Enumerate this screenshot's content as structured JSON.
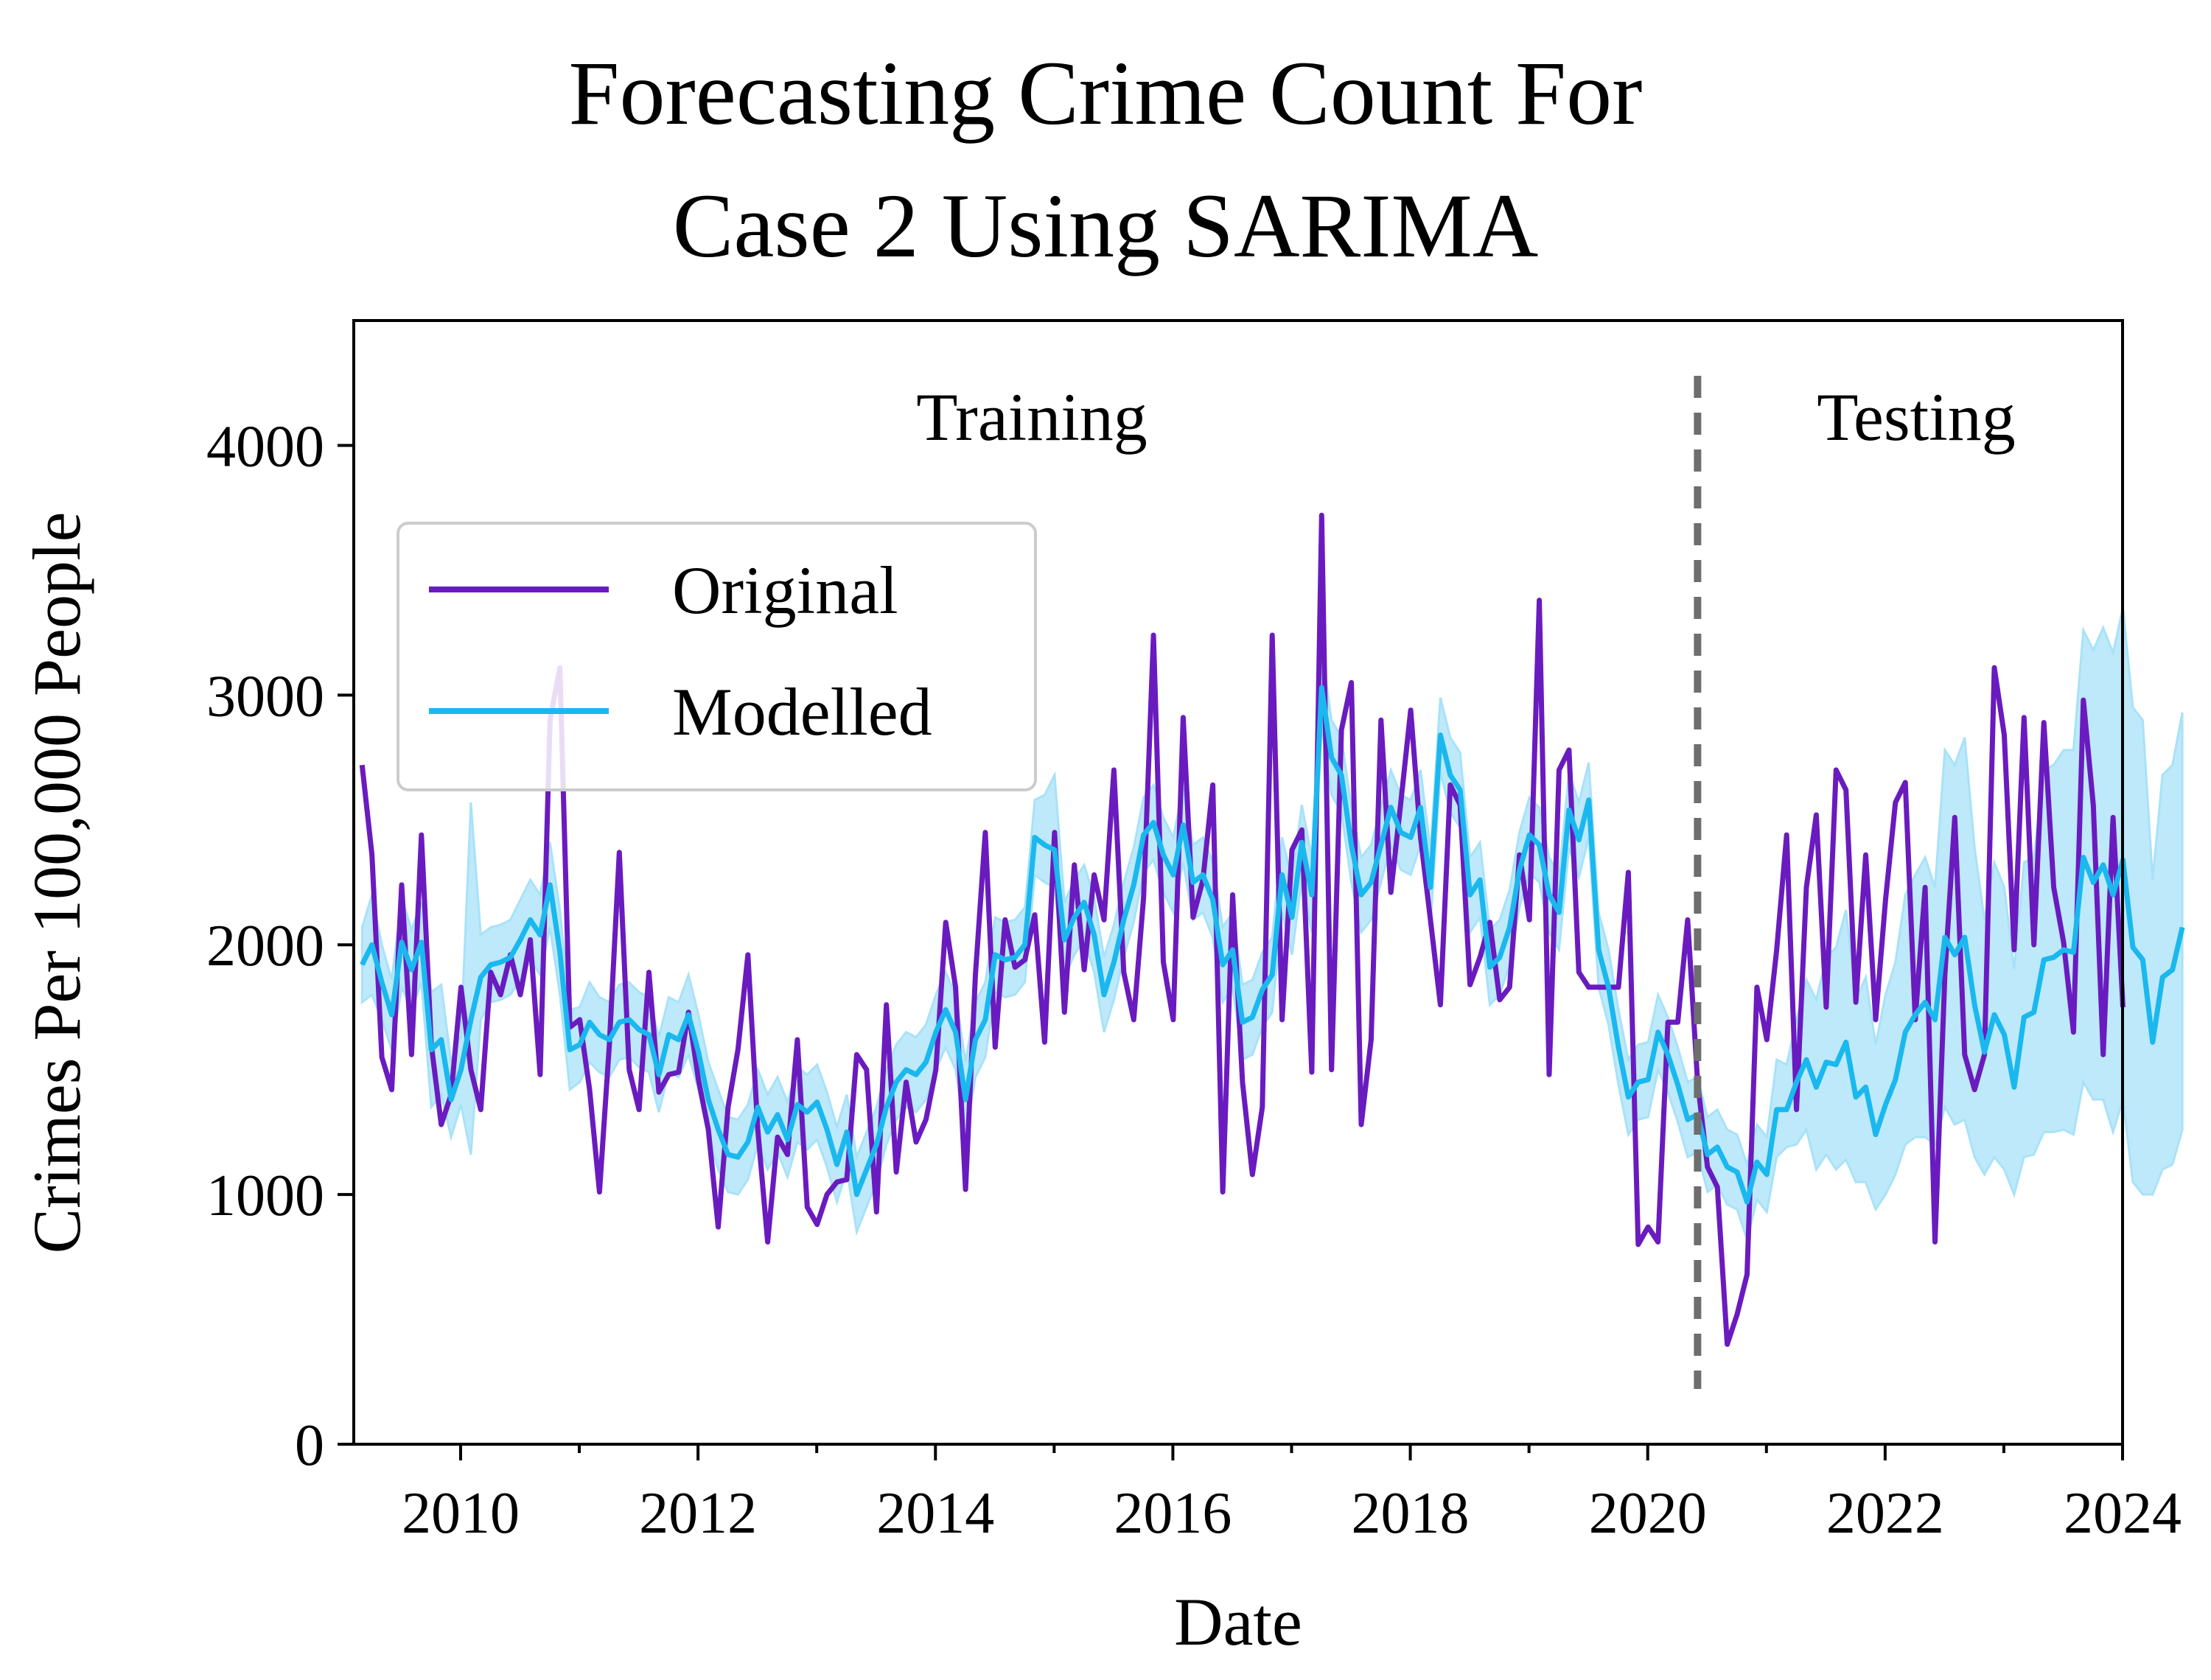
{
  "chart_data": {
    "type": "line",
    "title_lines": [
      "Forecasting Crime Count For",
      "Case 2 Using SARIMA"
    ],
    "xlabel": "Date",
    "ylabel": "Crimes Per 100,000 People",
    "xlim": [
      2009.1,
      2024.0
    ],
    "ylim": [
      0,
      4500
    ],
    "x_ticks": [
      2010,
      2012,
      2014,
      2016,
      2018,
      2020,
      2022,
      2024
    ],
    "x_tick_labels": [
      "2010",
      "2012",
      "2014",
      "2016",
      "2018",
      "2020",
      "2022",
      "2024"
    ],
    "y_ticks": [
      0,
      1000,
      2000,
      3000,
      4000
    ],
    "y_tick_labels": [
      "0",
      "1000",
      "2000",
      "3000",
      "4000"
    ],
    "grid": false,
    "legend_position": "upper-left",
    "split_x": 2020.42,
    "region_labels": [
      "Training",
      "Testing"
    ],
    "colors": {
      "original": "#6a1bbf",
      "modelled": "#1ab8ee",
      "band": "#a8e2f8",
      "split": "#6e6e6e"
    },
    "x_start": 2009.17,
    "x_step": 0.0833333,
    "series": [
      {
        "name": "Original",
        "values": [
          2720,
          2360,
          1550,
          1420,
          2240,
          1560,
          2440,
          1600,
          1280,
          1400,
          1830,
          1500,
          1340,
          1890,
          1800,
          1960,
          1800,
          2020,
          1480,
          2900,
          3110,
          1670,
          1700,
          1420,
          1010,
          1600,
          2370,
          1500,
          1340,
          1890,
          1410,
          1480,
          1490,
          1730,
          1460,
          1260,
          870,
          1350,
          1580,
          1960,
          1260,
          810,
          1230,
          1160,
          1620,
          950,
          880,
          1000,
          1050,
          1060,
          1560,
          1500,
          930,
          1760,
          1090,
          1450,
          1210,
          1300,
          1500,
          2090,
          1830,
          1020,
          1880,
          2450,
          1590,
          2100,
          1910,
          1940,
          2120,
          1610,
          2450,
          1730,
          2320,
          1900,
          2280,
          2100,
          2700,
          1890,
          1700,
          2190,
          3240,
          1930,
          1700,
          2910,
          2110,
          2260,
          2640,
          1010,
          2200,
          1450,
          1080,
          1350,
          3240,
          1700,
          2380,
          2460,
          1490,
          3720,
          1500,
          2860,
          3050,
          1280,
          1620,
          2900,
          2210,
          2570,
          2940,
          2430,
          2100,
          1760,
          2640,
          2560,
          1840,
          1950,
          2090,
          1780,
          1830,
          2360,
          2100,
          3380,
          1480,
          2700,
          2780,
          1890,
          1830,
          1830,
          1830,
          1830,
          2290,
          800,
          870,
          810,
          1690,
          1690,
          2100,
          1450,
          1110,
          1030,
          400,
          520,
          680,
          1830,
          1620,
          1980,
          2440,
          1340,
          2230,
          2520,
          1750,
          2700,
          2620,
          1770,
          2360,
          1700,
          2180,
          2570,
          2650,
          1700,
          2230,
          810,
          1880,
          2510,
          1560,
          1420,
          1560,
          3110,
          2840,
          1980,
          2910,
          2000,
          2890,
          2230,
          2010,
          1650,
          2980,
          2560,
          1560,
          2510,
          1750
        ]
      },
      {
        "name": "Modelled",
        "values": [
          1920,
          2000,
          1850,
          1720,
          2010,
          1900,
          2010,
          1580,
          1620,
          1380,
          1500,
          1700,
          1870,
          1920,
          1930,
          1950,
          2020,
          2100,
          2040,
          2240,
          1970,
          1580,
          1600,
          1690,
          1640,
          1620,
          1690,
          1700,
          1660,
          1640,
          1480,
          1640,
          1620,
          1720,
          1570,
          1380,
          1260,
          1160,
          1150,
          1210,
          1350,
          1250,
          1320,
          1220,
          1360,
          1330,
          1370,
          1260,
          1120,
          1250,
          1000,
          1100,
          1200,
          1350,
          1450,
          1500,
          1480,
          1530,
          1650,
          1740,
          1650,
          1380,
          1620,
          1700,
          1960,
          1940,
          1950,
          2000,
          2430,
          2400,
          2380,
          2020,
          2110,
          2170,
          2040,
          1800,
          1930,
          2100,
          2240,
          2440,
          2490,
          2360,
          2280,
          2480,
          2250,
          2280,
          2180,
          1920,
          1980,
          1690,
          1710,
          1820,
          1880,
          2280,
          2110,
          2410,
          2200,
          3030,
          2750,
          2680,
          2400,
          2200,
          2250,
          2400,
          2550,
          2450,
          2430,
          2550,
          2230,
          2840,
          2680,
          2620,
          2200,
          2260,
          1910,
          1950,
          2070,
          2300,
          2440,
          2400,
          2200,
          2130,
          2540,
          2420,
          2580,
          1980,
          1830,
          1590,
          1390,
          1450,
          1460,
          1650,
          1560,
          1440,
          1300,
          1320,
          1160,
          1190,
          1110,
          1090,
          970,
          1130,
          1080,
          1340,
          1340,
          1450,
          1540,
          1430,
          1530,
          1520,
          1610,
          1390,
          1430,
          1240,
          1360,
          1460,
          1650,
          1720,
          1770,
          1700,
          2030,
          1960,
          2030,
          1760,
          1570,
          1720,
          1640,
          1430,
          1710,
          1730,
          1940,
          1950,
          1980,
          1970,
          2350,
          2250,
          2320,
          2200,
          2340,
          1990,
          1940,
          1610,
          1870,
          1900,
          2070
        ]
      }
    ],
    "band_lower": [
      1770,
      1800,
      1700,
      1580,
      1830,
      1740,
      1850,
      1350,
      1400,
      1230,
      1360,
      1160,
      1700,
      1770,
      1780,
      1800,
      1860,
      1940,
      1880,
      2070,
      1800,
      1420,
      1450,
      1530,
      1490,
      1470,
      1540,
      1550,
      1510,
      1490,
      1330,
      1490,
      1470,
      1560,
      1420,
      1230,
      1100,
      1010,
      1000,
      1060,
      1200,
      1100,
      1170,
      1070,
      1210,
      1180,
      1220,
      1110,
      970,
      1100,
      850,
      950,
      1050,
      1200,
      1300,
      1350,
      1330,
      1380,
      1500,
      1590,
      1500,
      1230,
      1470,
      1550,
      1810,
      1790,
      1800,
      1850,
      2280,
      2250,
      2230,
      1870,
      1960,
      2020,
      1890,
      1650,
      1780,
      1950,
      2090,
      2290,
      2340,
      2210,
      2130,
      2330,
      2100,
      2130,
      2030,
      1770,
      1830,
      1540,
      1560,
      1670,
      1730,
      2130,
      1960,
      2260,
      2050,
      2880,
      2600,
      2530,
      2250,
      2050,
      2100,
      2250,
      2400,
      2300,
      2280,
      2400,
      2080,
      2690,
      2530,
      2470,
      2050,
      2110,
      1760,
      1800,
      1920,
      2150,
      2290,
      2250,
      2050,
      1980,
      2390,
      2270,
      2430,
      1830,
      1680,
      1440,
      1240,
      1300,
      1310,
      1500,
      1410,
      1290,
      1150,
      1170,
      1010,
      1040,
      960,
      940,
      820,
      980,
      930,
      1150,
      1190,
      1200,
      1260,
      1100,
      1160,
      1100,
      1140,
      1050,
      1050,
      940,
      1000,
      1080,
      1200,
      1230,
      1230,
      1200,
      1350,
      1280,
      1300,
      1150,
      1080,
      1150,
      1100,
      1000,
      1150,
      1160,
      1250,
      1250,
      1260,
      1240,
      1450,
      1380,
      1380,
      1250,
      1380,
      1050,
      1000,
      1000,
      1100,
      1120,
      1260
    ],
    "band_upper": [
      2070,
      2200,
      2000,
      1860,
      2190,
      2060,
      2170,
      1810,
      1840,
      1530,
      1640,
      2570,
      2040,
      2070,
      2080,
      2100,
      2180,
      2260,
      2200,
      2410,
      2140,
      1740,
      1750,
      1850,
      1790,
      1770,
      1840,
      1850,
      1810,
      1790,
      1630,
      1790,
      1770,
      1880,
      1720,
      1530,
      1420,
      1310,
      1300,
      1360,
      1500,
      1400,
      1470,
      1370,
      1510,
      1480,
      1520,
      1410,
      1270,
      1400,
      1150,
      1250,
      1350,
      1500,
      1600,
      1650,
      1630,
      1680,
      1800,
      1890,
      1800,
      1530,
      1770,
      1850,
      2110,
      2090,
      2100,
      2150,
      2580,
      2600,
      2680,
      2170,
      2260,
      2320,
      2190,
      1950,
      2080,
      2250,
      2390,
      2590,
      2640,
      2510,
      2430,
      2630,
      2400,
      2430,
      2330,
      2070,
      2130,
      1840,
      1860,
      1970,
      2030,
      2430,
      2260,
      2560,
      2350,
      3180,
      2900,
      2830,
      2550,
      2350,
      2400,
      2550,
      2700,
      2600,
      2580,
      2700,
      2380,
      2990,
      2830,
      2770,
      2350,
      2410,
      2060,
      2100,
      2220,
      2450,
      2590,
      2550,
      2350,
      2280,
      2690,
      2570,
      2730,
      2130,
      1980,
      1740,
      1540,
      1600,
      1610,
      1800,
      1710,
      1590,
      1450,
      1470,
      1310,
      1340,
      1260,
      1240,
      1120,
      1280,
      1230,
      1540,
      1520,
      1700,
      1860,
      1780,
      1950,
      1990,
      2140,
      1780,
      1870,
      1600,
      1800,
      1930,
      2200,
      2280,
      2350,
      2230,
      2780,
      2720,
      2830,
      2390,
      2100,
      2330,
      2230,
      1900,
      2330,
      2350,
      2700,
      2720,
      2780,
      2780,
      3260,
      3180,
      3270,
      3170,
      3350,
      2950,
      2900,
      2260,
      2680,
      2720,
      2930
    ]
  }
}
